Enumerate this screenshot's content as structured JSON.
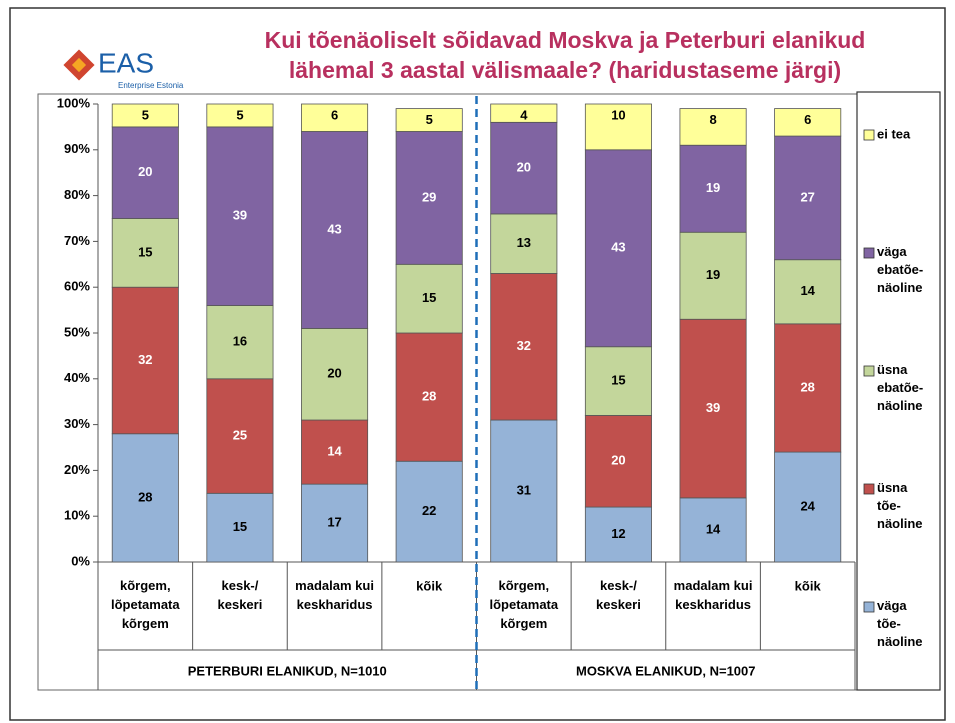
{
  "logo": {
    "name": "EAS",
    "subtitle": "Enterprise Estonia"
  },
  "chart_data": {
    "type": "stacked_bar",
    "title": "Kui tõenäoliselt sõidavad Moskva ja Peterburi elanikud\nlähemal 3 aastal välismaale? (haridustaseme järgi)",
    "categories": [
      "kõrgem,\nlõpetamata\nkõrgem",
      "kesk-/\nkeskeri",
      "madalam kui\nkeskharidus",
      "kõik",
      "kõrgem,\nlõpetamata\nkõrgem",
      "kesk-/\nkeskeri",
      "madalam kui\nkeskharidus",
      "kõik"
    ],
    "groups": [
      "PETERBURI ELANIKUD, N=1010",
      "MOSKVA ELANIKUD, N=1007"
    ],
    "series": [
      {
        "name": "väga\ntõe-\nnäoline",
        "color": "#95b3d7",
        "values": [
          28,
          15,
          17,
          22,
          31,
          12,
          14,
          24
        ]
      },
      {
        "name": "üsna\ntõe-\nnäoline",
        "color": "#c0504d",
        "values": [
          32,
          25,
          14,
          28,
          32,
          20,
          39,
          28
        ]
      },
      {
        "name": "üsna\nebatõe-\nnäoline",
        "color": "#c3d69b",
        "values": [
          15,
          16,
          20,
          15,
          13,
          15,
          19,
          14
        ]
      },
      {
        "name": "väga\nebatõe-\nnäoline",
        "color": "#8064a2",
        "values": [
          20,
          39,
          43,
          29,
          20,
          43,
          19,
          27
        ]
      },
      {
        "name": "ei tea",
        "color": "#ffff99",
        "values": [
          5,
          5,
          6,
          5,
          4,
          10,
          8,
          6
        ]
      }
    ],
    "ylim": [
      0,
      100
    ],
    "yticks": [
      {
        "value": 0,
        "label": "0%"
      },
      {
        "value": 10,
        "label": "10%"
      },
      {
        "value": 20,
        "label": "20%"
      },
      {
        "value": 30,
        "label": "30%"
      },
      {
        "value": 40,
        "label": "40%"
      },
      {
        "value": 50,
        "label": "50%"
      },
      {
        "value": 60,
        "label": "60%"
      },
      {
        "value": 70,
        "label": "70%"
      },
      {
        "value": 80,
        "label": "80%"
      },
      {
        "value": 90,
        "label": "90%"
      },
      {
        "value": 100,
        "label": "100%"
      }
    ],
    "grid": false
  }
}
